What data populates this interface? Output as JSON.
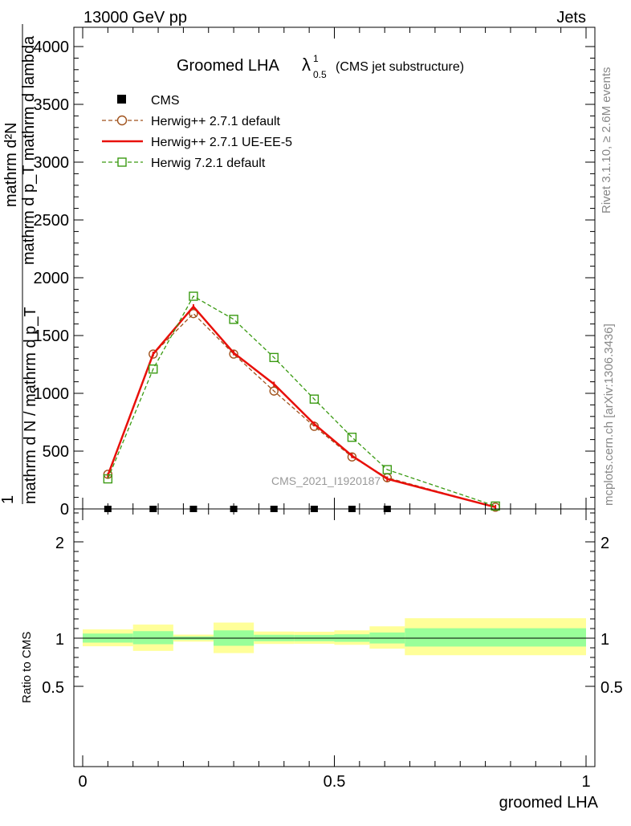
{
  "header": {
    "left": "13000 GeV pp",
    "right": "Jets"
  },
  "side": {
    "rivet": "Rivet 3.1.10, ≥ 2.6M events",
    "mcplots": "mcplots.cern.ch [arXiv:1306.3436]"
  },
  "watermark": "CMS_2021_I1920187",
  "title": {
    "main": "Groomed LHA",
    "lambda": "λ",
    "sup": "1",
    "sub": "0.5",
    "note": "(CMS jet substructure)"
  },
  "ylabel": {
    "frac_top": "mathrm d²N",
    "frac_top2": "mathrm d p_T mathrm d lambda",
    "frac_bottom": "mathrm d N / mathrm d p_T",
    "one": "1",
    "sub_t": "T"
  },
  "ratio_ylabel": "Ratio to CMS",
  "xlabel": "groomed LHA",
  "legend": [
    {
      "label": "CMS",
      "color": "#000000",
      "marker": "square-filled",
      "line": "none"
    },
    {
      "label": "Herwig++ 2.7.1 default",
      "color": "#a0521c",
      "marker": "circle-open",
      "line": "dashed"
    },
    {
      "label": "Herwig++ 2.7.1 UE-EE-5",
      "color": "#e8100a",
      "marker": "none",
      "line": "solid"
    },
    {
      "label": "Herwig 7.2.1 default",
      "color": "#3a9a12",
      "marker": "square-open",
      "line": "dashed"
    }
  ],
  "chart_data": {
    "type": "line",
    "xlim": [
      0,
      1
    ],
    "main_ylim": [
      0,
      4000
    ],
    "main_yticks": [
      {
        "v": 0,
        "label": "0"
      },
      {
        "v": 500,
        "label": "500"
      },
      {
        "v": 1000,
        "label": "1000"
      },
      {
        "v": 1500,
        "label": "1500"
      },
      {
        "v": 2000,
        "label": "2000"
      },
      {
        "v": 2500,
        "label": "2500"
      },
      {
        "v": 3000,
        "label": "3000"
      },
      {
        "v": 3500,
        "label": "3500"
      },
      {
        "v": 4000,
        "label": "4000"
      }
    ],
    "ratio_ylim": [
      0.4,
      2.4
    ],
    "ratio_yticks": [
      {
        "v": 0.5,
        "label": "0.5"
      },
      {
        "v": 1,
        "label": "1"
      },
      {
        "v": 2,
        "label": "2"
      }
    ],
    "xticks": [
      {
        "v": 0,
        "label": "0"
      },
      {
        "v": 0.5,
        "label": "0.5"
      },
      {
        "v": 1,
        "label": "1"
      }
    ],
    "cms_points": {
      "x": [
        0.05,
        0.14,
        0.22,
        0.3,
        0.38,
        0.46,
        0.535,
        0.605
      ],
      "y": [
        1,
        1,
        1,
        1,
        1,
        1,
        1,
        1
      ]
    },
    "series": [
      {
        "name": "Herwig++ 2.7.1 default",
        "color": "#a0521c",
        "dash": "5,3",
        "marker": "circle",
        "x": [
          0.05,
          0.14,
          0.22,
          0.3,
          0.38,
          0.46,
          0.535,
          0.605,
          0.82
        ],
        "y": [
          300,
          1340,
          1690,
          1340,
          1020,
          715,
          450,
          270,
          15
        ]
      },
      {
        "name": "Herwig++ 2.7.1 UE-EE-5",
        "color": "#e8100a",
        "dash": "",
        "marker": "none",
        "x": [
          0.05,
          0.14,
          0.22,
          0.3,
          0.38,
          0.46,
          0.535,
          0.605,
          0.82
        ],
        "y": [
          290,
          1340,
          1750,
          1350,
          1080,
          735,
          460,
          260,
          15
        ]
      },
      {
        "name": "Herwig 7.2.1 default",
        "color": "#3a9a12",
        "dash": "5,3",
        "marker": "square",
        "x": [
          0.05,
          0.14,
          0.22,
          0.3,
          0.38,
          0.46,
          0.535,
          0.605,
          0.82
        ],
        "y": [
          260,
          1210,
          1840,
          1640,
          1310,
          950,
          620,
          340,
          25
        ]
      }
    ],
    "ratio_bands": [
      {
        "x0": 0.0,
        "x1": 0.1,
        "y_lo": 0.916,
        "y_hi": 1.091,
        "g_lo": 0.954,
        "g_hi": 1.048
      },
      {
        "x0": 0.1,
        "x1": 0.18,
        "y_lo": 0.868,
        "y_hi": 1.141,
        "g_lo": 0.937,
        "g_hi": 1.073
      },
      {
        "x0": 0.18,
        "x1": 0.26,
        "y_lo": 0.964,
        "y_hi": 1.037,
        "g_lo": 0.982,
        "g_hi": 1.018
      },
      {
        "x0": 0.26,
        "x1": 0.34,
        "y_lo": 0.845,
        "y_hi": 1.162,
        "g_lo": 0.921,
        "g_hi": 1.081
      },
      {
        "x0": 0.34,
        "x1": 0.42,
        "y_lo": 0.94,
        "y_hi": 1.069,
        "g_lo": 0.968,
        "g_hi": 1.035
      },
      {
        "x0": 0.42,
        "x1": 0.5,
        "y_lo": 0.941,
        "y_hi": 1.067,
        "g_lo": 0.968,
        "g_hi": 1.034
      },
      {
        "x0": 0.5,
        "x1": 0.57,
        "y_lo": 0.931,
        "y_hi": 1.081,
        "g_lo": 0.962,
        "g_hi": 1.04
      },
      {
        "x0": 0.57,
        "x1": 0.64,
        "y_lo": 0.891,
        "y_hi": 1.123,
        "g_lo": 0.945,
        "g_hi": 1.059
      },
      {
        "x0": 0.64,
        "x1": 1.0,
        "y_lo": 0.823,
        "y_hi": 1.207,
        "g_lo": 0.913,
        "g_hi": 1.103
      }
    ],
    "band_colors": {
      "outer": "#ffff99",
      "inner": "#99ff99"
    }
  }
}
